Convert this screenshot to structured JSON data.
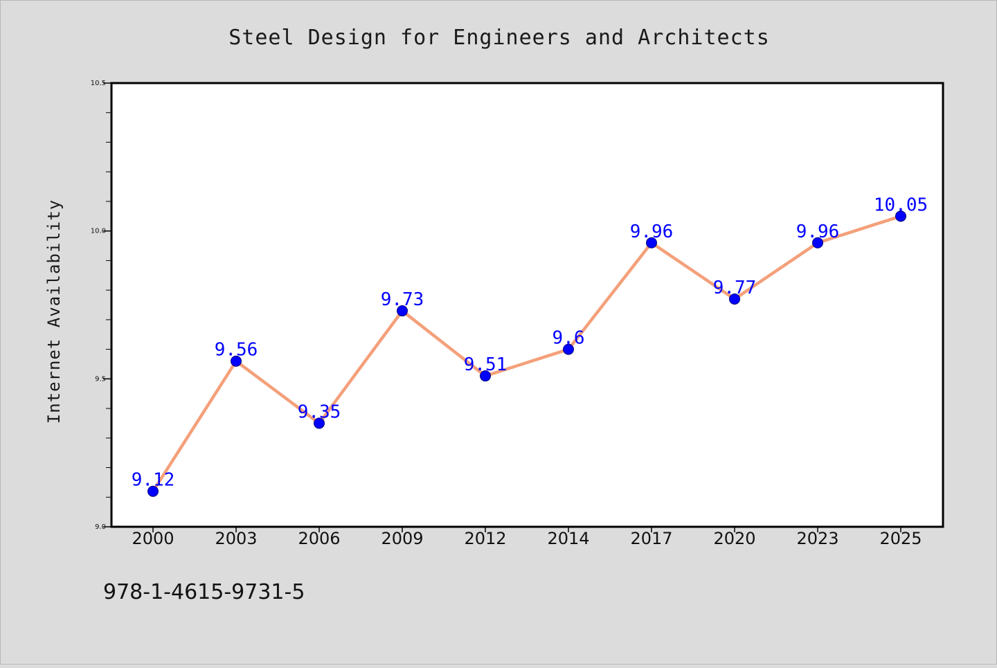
{
  "chart_data": {
    "type": "line",
    "title": "Steel Design for Engineers and Architects",
    "xlabel": "",
    "ylabel": "Internet Availability",
    "categories": [
      "2000",
      "2003",
      "2006",
      "2009",
      "2012",
      "2014",
      "2017",
      "2020",
      "2023",
      "2025"
    ],
    "values": [
      9.12,
      9.56,
      9.35,
      9.73,
      9.51,
      9.6,
      9.96,
      9.77,
      9.96,
      10.05
    ],
    "value_labels": [
      "9.12",
      "9.56",
      "9.35",
      "9.73",
      "9.51",
      "9.6",
      "9.96",
      "9.77",
      "9.96",
      "10.05"
    ],
    "ylim": [
      9.0,
      10.5
    ],
    "yticks": [
      "9.0",
      "9.5",
      "10.0",
      "10.5"
    ],
    "ytick_values": [
      9.0,
      9.5,
      10.0,
      10.5
    ],
    "grid": false,
    "legend": "none",
    "colors": {
      "line": "#f4a07a",
      "marker": "#0000ff",
      "data_label": "#0000ff",
      "plot_background": "#ffffff",
      "figure_background": "#dcdcdc",
      "axes": "#000000"
    }
  },
  "footer": {
    "text": "978-1-4615-9731-5"
  }
}
